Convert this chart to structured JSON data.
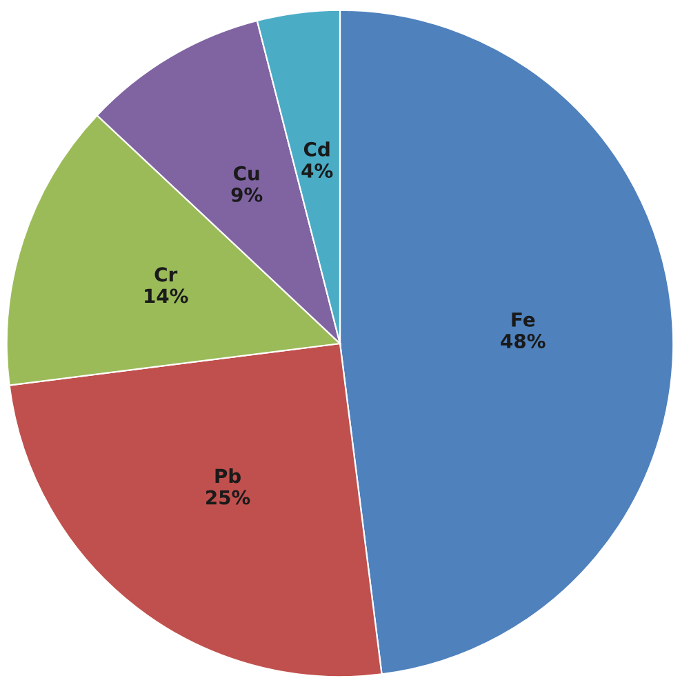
{
  "chart_data": {
    "type": "pie",
    "categories": [
      "Fe",
      "Pb",
      "Cr",
      "Cu",
      "Cd"
    ],
    "values": [
      48,
      25,
      14,
      9,
      4
    ],
    "colors": [
      "#4f81bd",
      "#c0504d",
      "#9bbb59",
      "#8064a2",
      "#4bacc6"
    ],
    "value_labels": [
      "48%",
      "25%",
      "14%",
      "9%",
      "4%"
    ],
    "legend": false
  }
}
